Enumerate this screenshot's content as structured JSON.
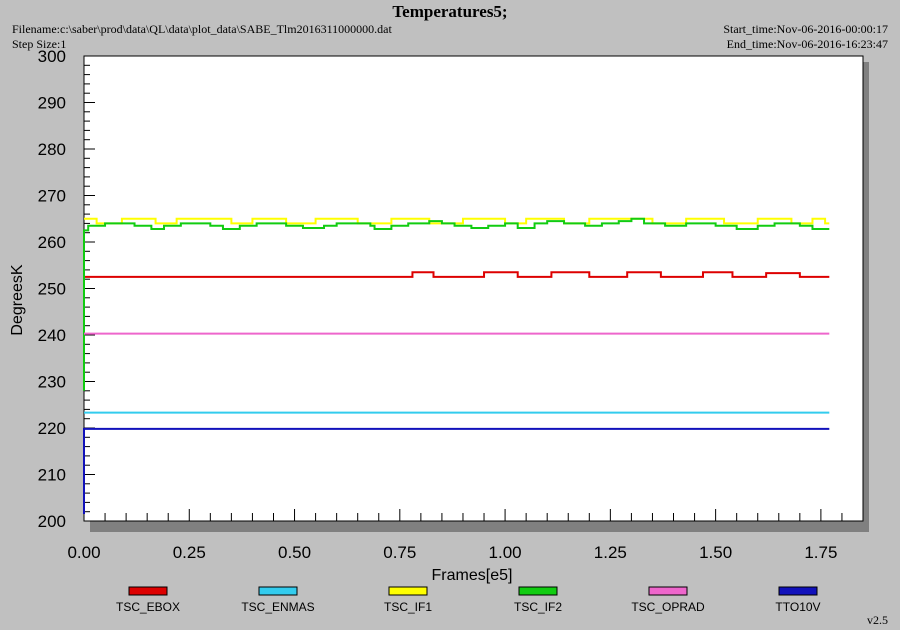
{
  "header": {
    "title": "Temperatures5;",
    "filename": "Filename:c:\\saber\\prod\\data\\QL\\data\\plot_data\\SABE_Tlm2016311000000.dat",
    "step_size": "Step Size:1",
    "start_time": "Start_time:Nov-06-2016-00:00:17",
    "end_time": "End_time:Nov-06-2016-16:23:47"
  },
  "footer": {
    "version": "v2.5"
  },
  "chart_data": {
    "type": "line",
    "title": "Temperatures5;",
    "xlabel": "Frames[e5]",
    "ylabel": "DegreesK",
    "xlim": [
      0,
      1.85
    ],
    "ylim": [
      200,
      300
    ],
    "x_ticks": [
      "0.00",
      "0.25",
      "0.50",
      "0.75",
      "1.00",
      "1.25",
      "1.50",
      "1.75"
    ],
    "x_tick_values": [
      0,
      0.25,
      0.5,
      0.75,
      1.0,
      1.25,
      1.5,
      1.75
    ],
    "y_ticks": [
      "300",
      "290",
      "280",
      "270",
      "260",
      "250",
      "240",
      "230",
      "220",
      "210",
      "200"
    ],
    "y_tick_values": [
      300,
      290,
      280,
      270,
      260,
      250,
      240,
      230,
      220,
      210,
      200
    ],
    "grid": false,
    "legend_position": "bottom",
    "series": [
      {
        "name": "TSC_EBOX",
        "color": "#dd0000",
        "points": [
          [
            0,
            252.5
          ],
          [
            0.78,
            252.5
          ],
          [
            0.78,
            253.5
          ],
          [
            0.83,
            253.5
          ],
          [
            0.83,
            252.5
          ],
          [
            0.95,
            252.5
          ],
          [
            0.95,
            253.5
          ],
          [
            1.03,
            253.5
          ],
          [
            1.03,
            252.5
          ],
          [
            1.11,
            252.5
          ],
          [
            1.11,
            253.5
          ],
          [
            1.2,
            253.5
          ],
          [
            1.2,
            252.5
          ],
          [
            1.29,
            252.5
          ],
          [
            1.29,
            253.5
          ],
          [
            1.37,
            253.5
          ],
          [
            1.37,
            252.5
          ],
          [
            1.47,
            252.5
          ],
          [
            1.47,
            253.5
          ],
          [
            1.54,
            253.5
          ],
          [
            1.54,
            252.5
          ],
          [
            1.62,
            252.5
          ],
          [
            1.62,
            253.3
          ],
          [
            1.7,
            253.3
          ],
          [
            1.7,
            252.5
          ],
          [
            1.77,
            252.5
          ]
        ]
      },
      {
        "name": "TSC_ENMAS",
        "color": "#33ccee",
        "points": [
          [
            0,
            223.3
          ],
          [
            1.77,
            223.3
          ]
        ]
      },
      {
        "name": "TSC_IF1",
        "color": "#ffff00",
        "points": [
          [
            0,
            265
          ],
          [
            0.03,
            265
          ],
          [
            0.03,
            264
          ],
          [
            0.09,
            264
          ],
          [
            0.09,
            265
          ],
          [
            0.17,
            265
          ],
          [
            0.17,
            264
          ],
          [
            0.22,
            264
          ],
          [
            0.22,
            265
          ],
          [
            0.35,
            265
          ],
          [
            0.35,
            264
          ],
          [
            0.4,
            264
          ],
          [
            0.4,
            265
          ],
          [
            0.48,
            265
          ],
          [
            0.48,
            264
          ],
          [
            0.55,
            264
          ],
          [
            0.55,
            265
          ],
          [
            0.65,
            265
          ],
          [
            0.65,
            264
          ],
          [
            0.73,
            264
          ],
          [
            0.73,
            265
          ],
          [
            0.82,
            265
          ],
          [
            0.82,
            264
          ],
          [
            0.9,
            264
          ],
          [
            0.9,
            265
          ],
          [
            1.0,
            265
          ],
          [
            1.0,
            264
          ],
          [
            1.05,
            264
          ],
          [
            1.05,
            265
          ],
          [
            1.14,
            265
          ],
          [
            1.14,
            264
          ],
          [
            1.2,
            264
          ],
          [
            1.2,
            265
          ],
          [
            1.35,
            265
          ],
          [
            1.35,
            264
          ],
          [
            1.43,
            264
          ],
          [
            1.43,
            265
          ],
          [
            1.52,
            265
          ],
          [
            1.52,
            264
          ],
          [
            1.6,
            264
          ],
          [
            1.6,
            265
          ],
          [
            1.68,
            265
          ],
          [
            1.68,
            264
          ],
          [
            1.73,
            264
          ],
          [
            1.73,
            265
          ],
          [
            1.76,
            265
          ],
          [
            1.76,
            264
          ],
          [
            1.77,
            264
          ]
        ]
      },
      {
        "name": "TSC_IF2",
        "color": "#11cc11",
        "points": [
          [
            0,
            228
          ],
          [
            0,
            262.5
          ],
          [
            0.01,
            262.5
          ],
          [
            0.01,
            263.5
          ],
          [
            0.05,
            263.5
          ],
          [
            0.05,
            264
          ],
          [
            0.12,
            264
          ],
          [
            0.12,
            263.5
          ],
          [
            0.16,
            263.5
          ],
          [
            0.16,
            262.8
          ],
          [
            0.19,
            262.8
          ],
          [
            0.19,
            263.5
          ],
          [
            0.23,
            263.5
          ],
          [
            0.23,
            264
          ],
          [
            0.3,
            264
          ],
          [
            0.3,
            263.5
          ],
          [
            0.33,
            263.5
          ],
          [
            0.33,
            262.8
          ],
          [
            0.37,
            262.8
          ],
          [
            0.37,
            263.5
          ],
          [
            0.41,
            263.5
          ],
          [
            0.41,
            264
          ],
          [
            0.48,
            264
          ],
          [
            0.48,
            263.5
          ],
          [
            0.52,
            263.5
          ],
          [
            0.52,
            263
          ],
          [
            0.57,
            263
          ],
          [
            0.57,
            263.5
          ],
          [
            0.6,
            263.5
          ],
          [
            0.6,
            264
          ],
          [
            0.68,
            264
          ],
          [
            0.68,
            263.5
          ],
          [
            0.69,
            263.5
          ],
          [
            0.69,
            262.8
          ],
          [
            0.73,
            262.8
          ],
          [
            0.73,
            263.5
          ],
          [
            0.77,
            263.5
          ],
          [
            0.77,
            264
          ],
          [
            0.82,
            264
          ],
          [
            0.82,
            264.5
          ],
          [
            0.85,
            264.5
          ],
          [
            0.85,
            264
          ],
          [
            0.88,
            264
          ],
          [
            0.88,
            263.5
          ],
          [
            0.92,
            263.5
          ],
          [
            0.92,
            263
          ],
          [
            0.96,
            263
          ],
          [
            0.96,
            263.5
          ],
          [
            1.0,
            263.5
          ],
          [
            1.0,
            264
          ],
          [
            1.03,
            264
          ],
          [
            1.03,
            263
          ],
          [
            1.07,
            263
          ],
          [
            1.07,
            264
          ],
          [
            1.1,
            264
          ],
          [
            1.1,
            264.5
          ],
          [
            1.14,
            264.5
          ],
          [
            1.14,
            264
          ],
          [
            1.19,
            264
          ],
          [
            1.19,
            263.5
          ],
          [
            1.23,
            263.5
          ],
          [
            1.23,
            264
          ],
          [
            1.27,
            264
          ],
          [
            1.27,
            264.5
          ],
          [
            1.3,
            264.5
          ],
          [
            1.3,
            265
          ],
          [
            1.33,
            265
          ],
          [
            1.33,
            264
          ],
          [
            1.38,
            264
          ],
          [
            1.38,
            263.5
          ],
          [
            1.43,
            263.5
          ],
          [
            1.43,
            264
          ],
          [
            1.5,
            264
          ],
          [
            1.5,
            263.5
          ],
          [
            1.55,
            263.5
          ],
          [
            1.55,
            262.8
          ],
          [
            1.6,
            262.8
          ],
          [
            1.6,
            263.5
          ],
          [
            1.64,
            263.5
          ],
          [
            1.64,
            264
          ],
          [
            1.7,
            264
          ],
          [
            1.7,
            263.5
          ],
          [
            1.73,
            263.5
          ],
          [
            1.73,
            262.8
          ],
          [
            1.77,
            262.8
          ]
        ]
      },
      {
        "name": "TSC_OPRAD",
        "color": "#ee66cc",
        "points": [
          [
            0,
            240.3
          ],
          [
            1.77,
            240.3
          ]
        ]
      },
      {
        "name": "TTO10V",
        "color": "#1111bb",
        "points": [
          [
            0,
            201.5
          ],
          [
            0,
            219.8
          ],
          [
            1.77,
            219.8
          ]
        ]
      }
    ]
  }
}
